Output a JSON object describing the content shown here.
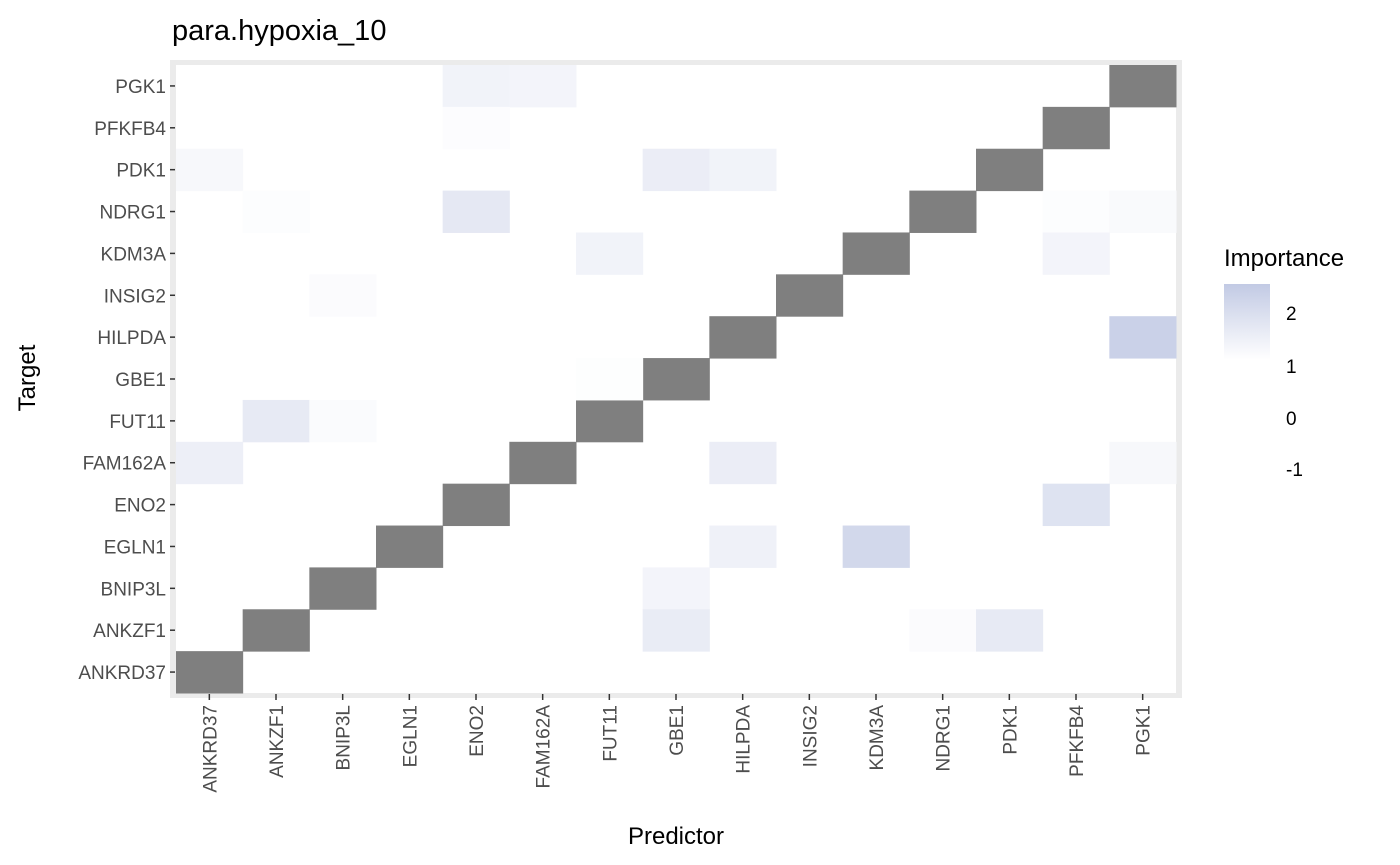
{
  "chart_data": {
    "type": "heatmap",
    "title": "para.hypoxia_10",
    "xlabel": "Predictor",
    "ylabel": "Target",
    "x_categories": [
      "ANKRD37",
      "ANKZF1",
      "BNIP3L",
      "EGLN1",
      "ENO2",
      "FAM162A",
      "FUT11",
      "GBE1",
      "HILPDA",
      "INSIG2",
      "KDM3A",
      "NDRG1",
      "PDK1",
      "PFKFB4",
      "PGK1"
    ],
    "y_categories": [
      "ANKRD37",
      "ANKZF1",
      "BNIP3L",
      "EGLN1",
      "ENO2",
      "FAM162A",
      "FUT11",
      "GBE1",
      "HILPDA",
      "INSIG2",
      "KDM3A",
      "NDRG1",
      "PDK1",
      "PFKFB4",
      "PGK1"
    ],
    "diagonal": "missing (grey)",
    "cells": [
      {
        "target": "PGK1",
        "predictor": "ENO2",
        "value": 1.35
      },
      {
        "target": "PGK1",
        "predictor": "FAM162A",
        "value": 1.3
      },
      {
        "target": "PFKFB4",
        "predictor": "ENO2",
        "value": 1.08
      },
      {
        "target": "PDK1",
        "predictor": "ANKRD37",
        "value": 1.2
      },
      {
        "target": "PDK1",
        "predictor": "GBE1",
        "value": 1.5
      },
      {
        "target": "PDK1",
        "predictor": "HILPDA",
        "value": 1.35
      },
      {
        "target": "NDRG1",
        "predictor": "ANKZF1",
        "value": 1.07
      },
      {
        "target": "NDRG1",
        "predictor": "ENO2",
        "value": 1.65
      },
      {
        "target": "NDRG1",
        "predictor": "PFKFB4",
        "value": 1.07
      },
      {
        "target": "NDRG1",
        "predictor": "PGK1",
        "value": 1.15
      },
      {
        "target": "KDM3A",
        "predictor": "FUT11",
        "value": 1.35
      },
      {
        "target": "KDM3A",
        "predictor": "PFKFB4",
        "value": 1.3
      },
      {
        "target": "INSIG2",
        "predictor": "BNIP3L",
        "value": 1.1
      },
      {
        "target": "HILPDA",
        "predictor": "PGK1",
        "value": 2.3
      },
      {
        "target": "GBE1",
        "predictor": "FUT11",
        "value": 1.04
      },
      {
        "target": "FUT11",
        "predictor": "ANKZF1",
        "value": 1.6
      },
      {
        "target": "FUT11",
        "predictor": "BNIP3L",
        "value": 1.12
      },
      {
        "target": "FAM162A",
        "predictor": "ANKRD37",
        "value": 1.45
      },
      {
        "target": "FAM162A",
        "predictor": "HILPDA",
        "value": 1.5
      },
      {
        "target": "FAM162A",
        "predictor": "PGK1",
        "value": 1.2
      },
      {
        "target": "ENO2",
        "predictor": "PFKFB4",
        "value": 1.8
      },
      {
        "target": "EGLN1",
        "predictor": "HILPDA",
        "value": 1.4
      },
      {
        "target": "EGLN1",
        "predictor": "KDM3A",
        "value": 2.1
      },
      {
        "target": "BNIP3L",
        "predictor": "GBE1",
        "value": 1.3
      },
      {
        "target": "ANKZF1",
        "predictor": "GBE1",
        "value": 1.55
      },
      {
        "target": "ANKZF1",
        "predictor": "NDRG1",
        "value": 1.1
      },
      {
        "target": "ANKZF1",
        "predictor": "PDK1",
        "value": 1.6
      }
    ],
    "legend": {
      "title": "Importance",
      "labels": [
        "2",
        "1",
        "0",
        "-1"
      ],
      "range": [
        1,
        2.5
      ],
      "color_low": "#ffffff",
      "color_high": "#c2cae4",
      "position": "right"
    },
    "grid": true
  }
}
